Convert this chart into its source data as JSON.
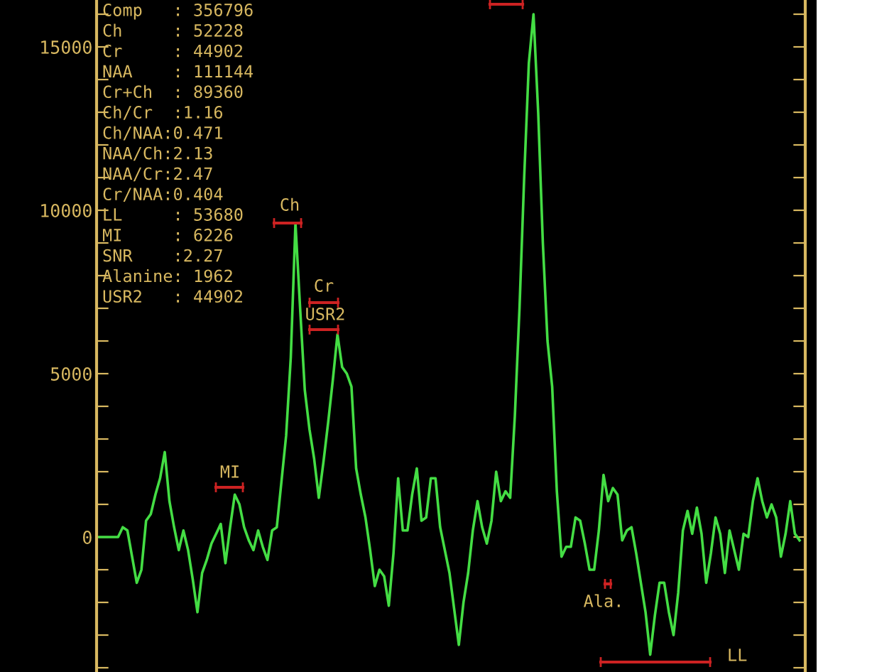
{
  "chart_data": {
    "type": "line",
    "categories": [
      null,
      null,
      null,
      null,
      null,
      null,
      null,
      null,
      null,
      null,
      null,
      null,
      null,
      null,
      null,
      null,
      null,
      null,
      null,
      null,
      null,
      null,
      null,
      null,
      null,
      null,
      null,
      null,
      null,
      null,
      null,
      null,
      null,
      null,
      null,
      null,
      null,
      null,
      null,
      null,
      null,
      null,
      null,
      null,
      null,
      null,
      null,
      null,
      null,
      null,
      null,
      null,
      null,
      null,
      null,
      null,
      null,
      null,
      null,
      null,
      null,
      null,
      null,
      null,
      null,
      null,
      null,
      null,
      null,
      null,
      null,
      null,
      null,
      null,
      null,
      null,
      null,
      null,
      null,
      null,
      null,
      null,
      null,
      null,
      null,
      null,
      null,
      null,
      null,
      null,
      null,
      null,
      null,
      null,
      null,
      null,
      null,
      null,
      null,
      null,
      null,
      null,
      null,
      null,
      null,
      null,
      null,
      null,
      null,
      null,
      null,
      null,
      null,
      null,
      null,
      null,
      null,
      null,
      null,
      null,
      null,
      null,
      null,
      null,
      null,
      null,
      null,
      null,
      null,
      null,
      null,
      null,
      null,
      null,
      null,
      null,
      null,
      null,
      null,
      null,
      null,
      null,
      null,
      null,
      null,
      null,
      null,
      null,
      null,
      null,
      null
    ],
    "series": [
      {
        "color": "#44dd44",
        "values": [
          0,
          0,
          0,
          0,
          0,
          300,
          200,
          -600,
          -1400,
          -1000,
          500,
          700,
          1300,
          1800,
          2600,
          1100,
          300,
          -400,
          200,
          -400,
          -1300,
          -2300,
          -1100,
          -700,
          -200,
          100,
          400,
          -800,
          300,
          1300,
          1000,
          300,
          -100,
          -400,
          200,
          -300,
          -700,
          200,
          300,
          1700,
          3100,
          5500,
          9600,
          7000,
          4500,
          3300,
          2400,
          1200,
          2300,
          3500,
          4800,
          6200,
          5200,
          5000,
          4600,
          2100,
          1300,
          600,
          -400,
          -1500,
          -1000,
          -1200,
          -2100,
          -500,
          1800,
          200,
          200,
          1300,
          2100,
          500,
          600,
          1800,
          1800,
          300,
          -400,
          -1100,
          -2200,
          -3300,
          -2000,
          -1100,
          200,
          1100,
          300,
          -200,
          500,
          2000,
          1100,
          1400,
          1200,
          3700,
          7000,
          11000,
          14500,
          16000,
          13000,
          9000,
          6000,
          4600,
          1400,
          -600,
          -300,
          -300,
          600,
          500,
          -200,
          -1000,
          -1000,
          200,
          1900,
          1100,
          1500,
          1300,
          -100,
          200,
          300,
          -500,
          -1400,
          -2300,
          -3600,
          -2400,
          -1400,
          -1400,
          -2300,
          -3000,
          -1700,
          200,
          800,
          100,
          900,
          100,
          -1400,
          -500,
          600,
          100,
          -1100,
          200,
          -400,
          -1000,
          100,
          0,
          1100,
          1800,
          1100,
          600,
          1000,
          600,
          -600,
          100,
          1100,
          100,
          -100
        ]
      }
    ],
    "ylim": [
      -4130,
      16435
    ],
    "yticks": [
      {
        "value": -4000,
        "label": null
      },
      {
        "value": -3000,
        "label": null
      },
      {
        "value": -2000,
        "label": null
      },
      {
        "value": -1000,
        "label": null
      },
      0,
      {
        "value": 1000,
        "label": null
      },
      {
        "value": 2000,
        "label": null
      },
      {
        "value": 3000,
        "label": null
      },
      {
        "value": 4000,
        "label": null
      },
      5000,
      {
        "value": 6000,
        "label": null
      },
      {
        "value": 7000,
        "label": null
      },
      {
        "value": 8000,
        "label": null
      },
      {
        "value": 9000,
        "label": null
      },
      10000,
      {
        "value": 11000,
        "label": null
      },
      {
        "value": 12000,
        "label": null
      },
      {
        "value": 13000,
        "label": null
      },
      {
        "value": 14000,
        "label": null
      },
      15000,
      {
        "value": 16000,
        "label": null
      }
    ],
    "tick_labels": "y",
    "grid": false,
    "annotations": [
      "Comp   : 356796",
      "Ch     : 52228",
      "Cr     : 44902",
      "NAA    : 111144",
      "Cr+Ch  : 89360",
      "Ch/Cr  :1.16",
      "Ch/NAA:0.471",
      "NAA/Ch:2.13",
      "NAA/Cr:2.47",
      "Cr/NAA:0.404",
      "LL     : 53680",
      "MI     : 6226",
      "SNR    :2.27",
      "Alanine: 1962",
      "USR2   : 44902",
      "Ch",
      "Cr",
      "USR2",
      "MI",
      "Ala.",
      "LL"
    ]
  }
}
